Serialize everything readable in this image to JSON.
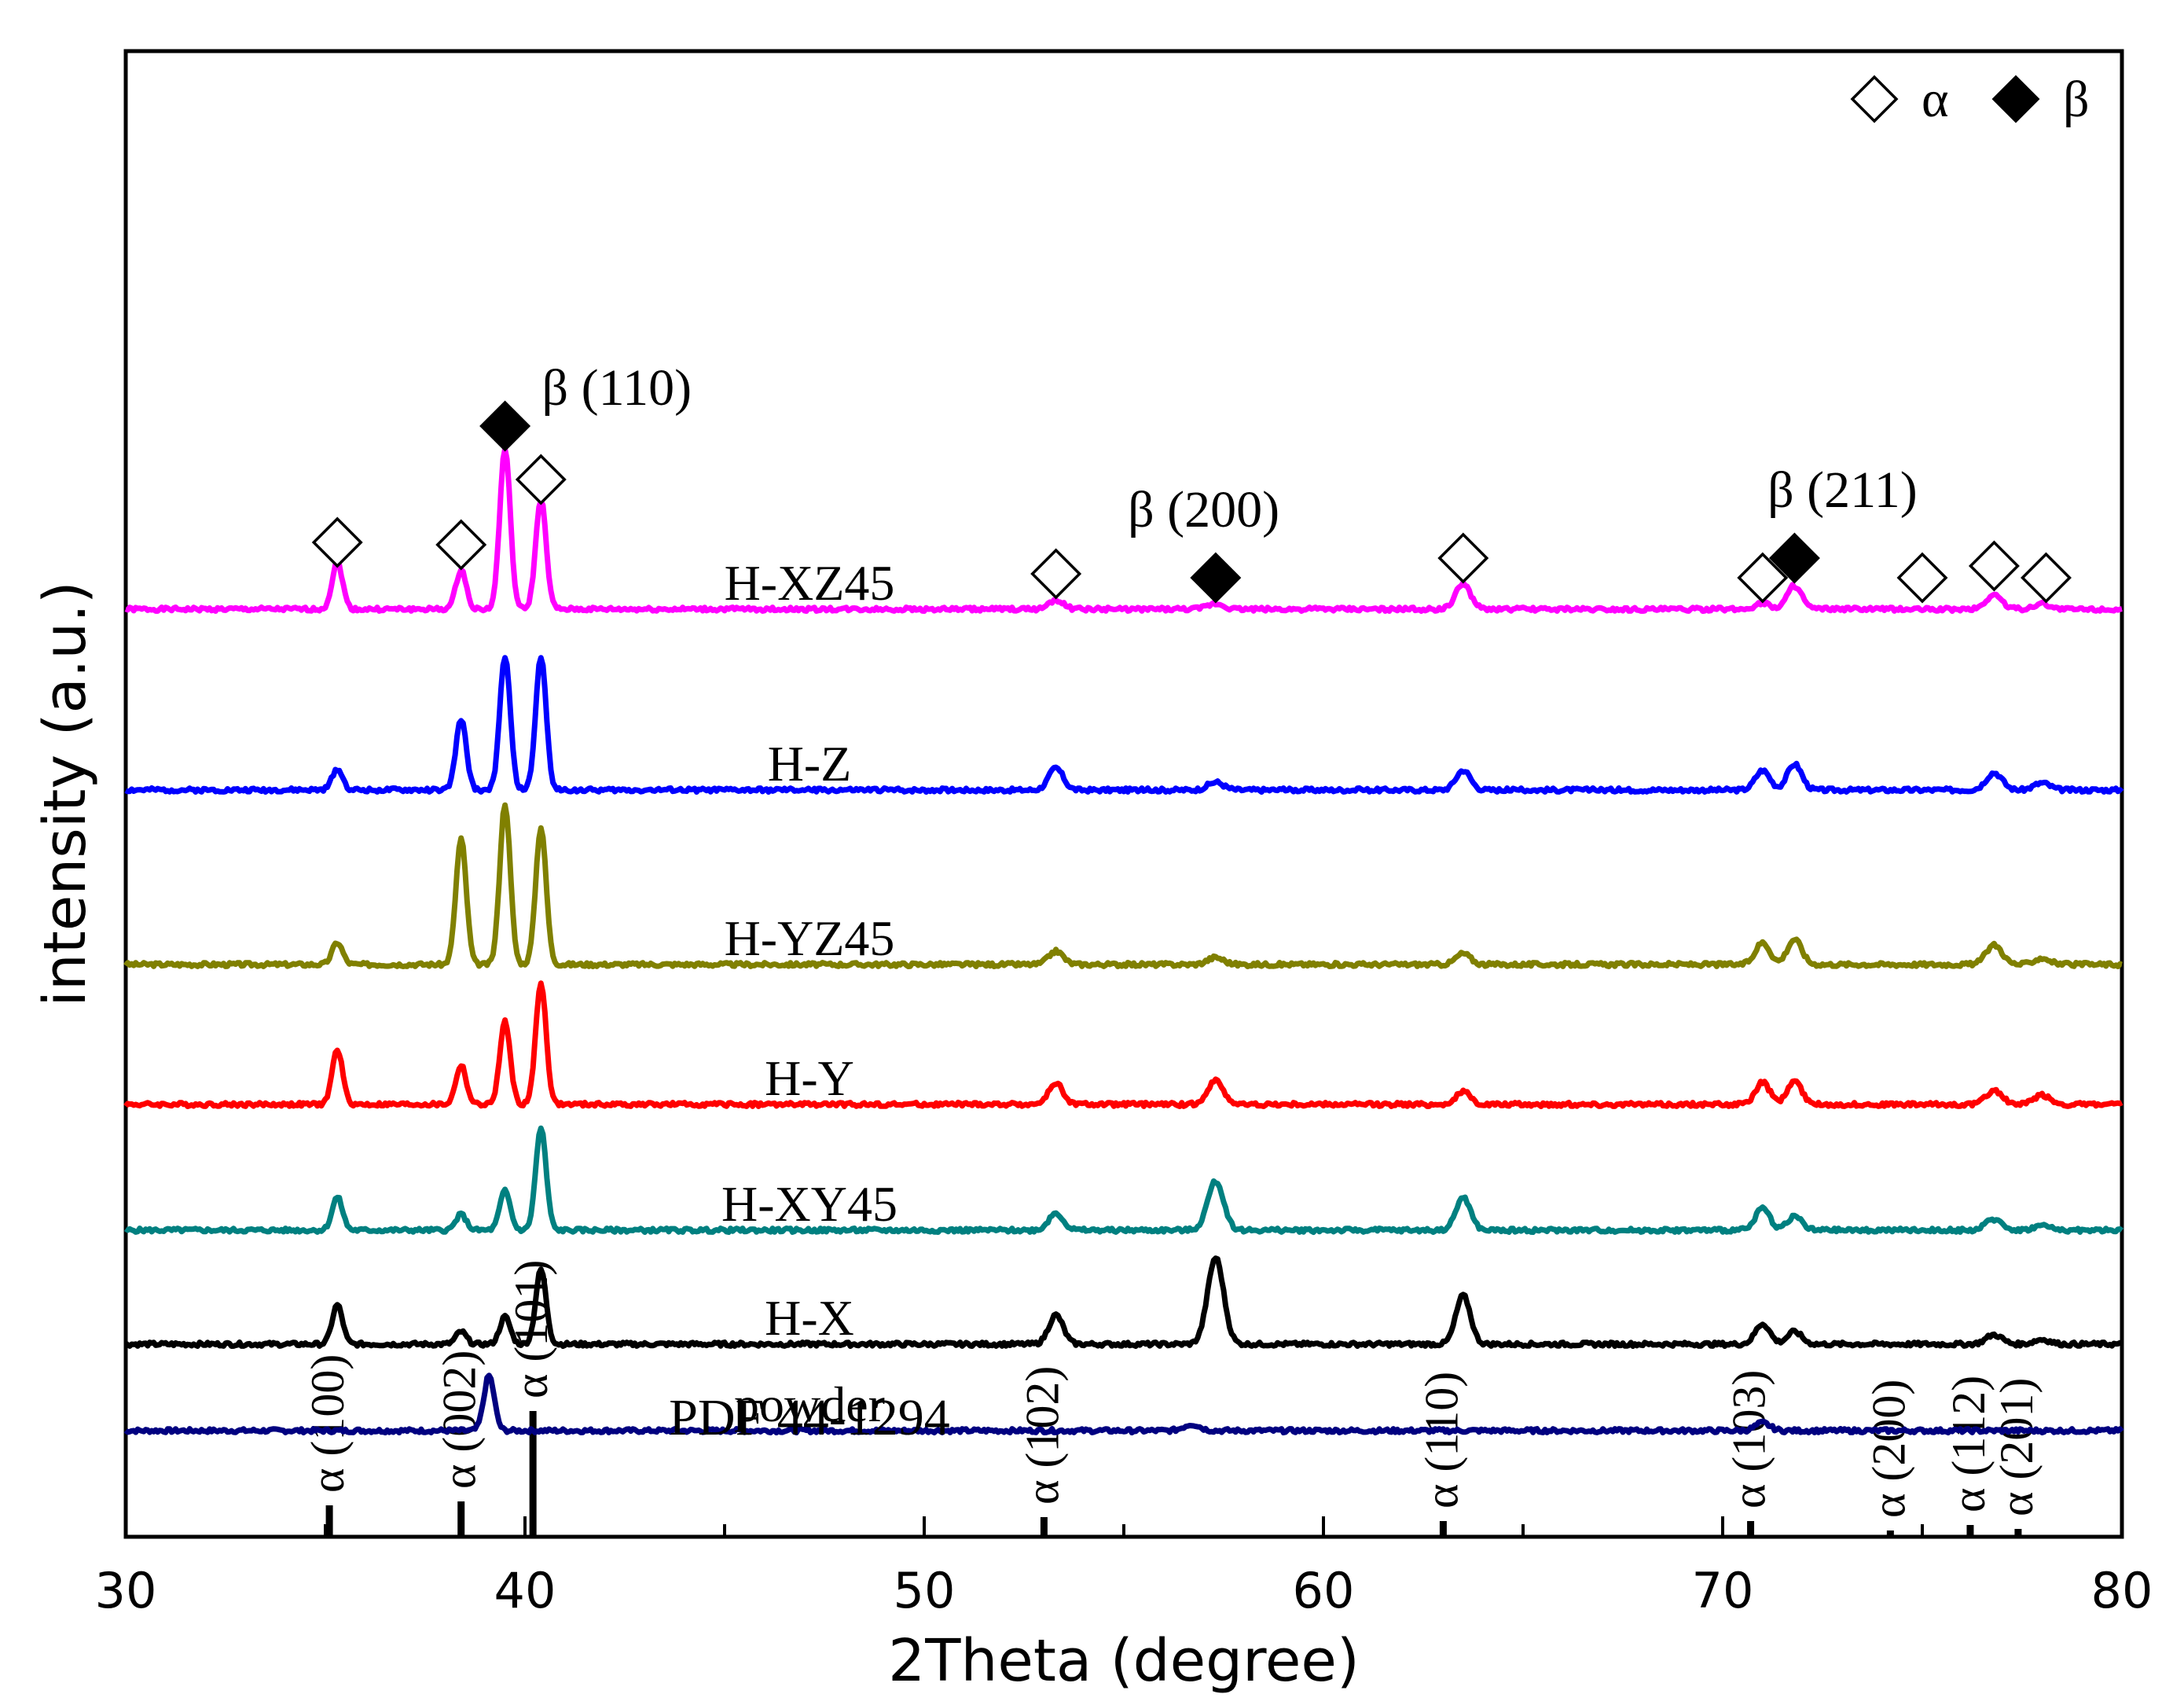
{
  "chart_data": {
    "type": "line",
    "title": "",
    "xlabel": "2Theta (degree)",
    "ylabel": "intensity (a.u.)",
    "xlim": [
      30,
      80
    ],
    "xticks": [
      30,
      40,
      50,
      60,
      70,
      80
    ],
    "grid": false,
    "legend_position": "top-right",
    "legend": [
      {
        "symbol": "open-diamond",
        "label": "α"
      },
      {
        "symbol": "filled-diamond",
        "label": "β"
      }
    ],
    "series": [
      {
        "name": "H-XZ45",
        "color": "#ff00ff",
        "baseline": 1180,
        "peaks": [
          [
            35.3,
            60,
            0.13
          ],
          [
            38.4,
            50,
            0.13
          ],
          [
            39.5,
            205,
            0.13
          ],
          [
            40.4,
            140,
            0.13
          ],
          [
            53.3,
            12,
            0.18
          ],
          [
            57.3,
            7,
            0.2
          ],
          [
            63.5,
            33,
            0.18
          ],
          [
            71.0,
            8,
            0.18
          ],
          [
            71.8,
            30,
            0.18
          ],
          [
            76.8,
            18,
            0.2
          ],
          [
            78.0,
            7,
            0.2
          ]
        ]
      },
      {
        "name": "H-Z",
        "color": "#0000ff",
        "baseline": 950,
        "peaks": [
          [
            35.3,
            27,
            0.13
          ],
          [
            38.4,
            90,
            0.13
          ],
          [
            39.5,
            170,
            0.13
          ],
          [
            40.4,
            170,
            0.13
          ],
          [
            53.3,
            28,
            0.18
          ],
          [
            57.3,
            10,
            0.2
          ],
          [
            63.5,
            25,
            0.18
          ],
          [
            71.0,
            25,
            0.18
          ],
          [
            71.8,
            33,
            0.18
          ],
          [
            76.8,
            22,
            0.2
          ],
          [
            78.0,
            9,
            0.2
          ]
        ]
      },
      {
        "name": "H-YZ45",
        "color": "#808000",
        "baseline": 728,
        "peaks": [
          [
            35.3,
            28,
            0.13
          ],
          [
            38.4,
            160,
            0.13
          ],
          [
            39.5,
            205,
            0.13
          ],
          [
            40.4,
            175,
            0.13
          ],
          [
            53.3,
            17,
            0.18
          ],
          [
            57.3,
            9,
            0.2
          ],
          [
            63.5,
            14,
            0.18
          ],
          [
            71.0,
            28,
            0.18
          ],
          [
            71.8,
            32,
            0.18
          ],
          [
            76.8,
            25,
            0.2
          ],
          [
            78.0,
            8,
            0.2
          ]
        ]
      },
      {
        "name": "H-Y",
        "color": "#ff0000",
        "baseline": 550,
        "peaks": [
          [
            35.3,
            70,
            0.13
          ],
          [
            38.4,
            50,
            0.13
          ],
          [
            39.5,
            105,
            0.13
          ],
          [
            40.4,
            155,
            0.13
          ],
          [
            53.3,
            27,
            0.18
          ],
          [
            57.3,
            30,
            0.2
          ],
          [
            63.5,
            16,
            0.18
          ],
          [
            71.0,
            28,
            0.18
          ],
          [
            71.8,
            30,
            0.18
          ],
          [
            76.8,
            18,
            0.2
          ],
          [
            78.0,
            12,
            0.2
          ]
        ]
      },
      {
        "name": "H-XY45",
        "color": "#008080",
        "baseline": 390,
        "peaks": [
          [
            35.3,
            42,
            0.13
          ],
          [
            38.4,
            20,
            0.13
          ],
          [
            39.5,
            50,
            0.13
          ],
          [
            40.4,
            130,
            0.13
          ],
          [
            53.3,
            22,
            0.18
          ],
          [
            57.3,
            62,
            0.2
          ],
          [
            63.5,
            42,
            0.18
          ],
          [
            71.0,
            28,
            0.18
          ],
          [
            71.8,
            18,
            0.18
          ],
          [
            76.8,
            14,
            0.2
          ],
          [
            78.0,
            6,
            0.2
          ]
        ]
      },
      {
        "name": "H-X",
        "color": "#000000",
        "baseline": 245,
        "peaks": [
          [
            35.3,
            50,
            0.13
          ],
          [
            38.4,
            16,
            0.13
          ],
          [
            39.5,
            35,
            0.13
          ],
          [
            40.4,
            95,
            0.13
          ],
          [
            53.3,
            37,
            0.18
          ],
          [
            57.3,
            110,
            0.2
          ],
          [
            63.5,
            62,
            0.18
          ],
          [
            71.0,
            26,
            0.18
          ],
          [
            71.8,
            16,
            0.18
          ],
          [
            76.8,
            12,
            0.2
          ],
          [
            78.0,
            6,
            0.2
          ]
        ]
      },
      {
        "name": "powder",
        "color": "#000080",
        "baseline": 135,
        "peaks": [
          [
            39.1,
            70,
            0.13
          ],
          [
            56.7,
            8,
            0.2
          ],
          [
            71.0,
            10,
            0.18
          ]
        ]
      }
    ],
    "reference": {
      "label": "PDF 44-1294",
      "lines": [
        {
          "label": "α (100)",
          "x": 35.1,
          "height": 40
        },
        {
          "label": "α (002)",
          "x": 38.4,
          "height": 45
        },
        {
          "label": "α (101)",
          "x": 40.2,
          "height": 160
        },
        {
          "label": "α (102)",
          "x": 53.0,
          "height": 25
        },
        {
          "label": "α (110)",
          "x": 63.0,
          "height": 20
        },
        {
          "label": "α (103)",
          "x": 70.7,
          "height": 20
        },
        {
          "label": "α (200)",
          "x": 74.2,
          "height": 8
        },
        {
          "label": "α (112)",
          "x": 76.2,
          "height": 15
        },
        {
          "label": "α (201)",
          "x": 77.4,
          "height": 10
        }
      ]
    },
    "markers": [
      {
        "type": "open-diamond",
        "x": 35.3,
        "y": 1265
      },
      {
        "type": "open-diamond",
        "x": 38.4,
        "y": 1262
      },
      {
        "type": "filled-diamond",
        "x": 39.5,
        "y": 1413
      },
      {
        "type": "open-diamond",
        "x": 40.4,
        "y": 1345
      },
      {
        "type": "open-diamond",
        "x": 53.3,
        "y": 1225
      },
      {
        "type": "filled-diamond",
        "x": 57.3,
        "y": 1220
      },
      {
        "type": "open-diamond",
        "x": 63.5,
        "y": 1245
      },
      {
        "type": "open-diamond",
        "x": 71.0,
        "y": 1220
      },
      {
        "type": "filled-diamond",
        "x": 71.8,
        "y": 1245
      },
      {
        "type": "open-diamond",
        "x": 75.0,
        "y": 1220
      },
      {
        "type": "open-diamond",
        "x": 76.8,
        "y": 1235
      },
      {
        "type": "open-diamond",
        "x": 78.1,
        "y": 1220
      }
    ],
    "annotations": [
      {
        "text": "β (110)",
        "x": 42.3,
        "y": 1440
      },
      {
        "text": "β (200)",
        "x": 57.0,
        "y": 1285
      },
      {
        "text": "β (211)",
        "x": 73.0,
        "y": 1310
      }
    ]
  }
}
